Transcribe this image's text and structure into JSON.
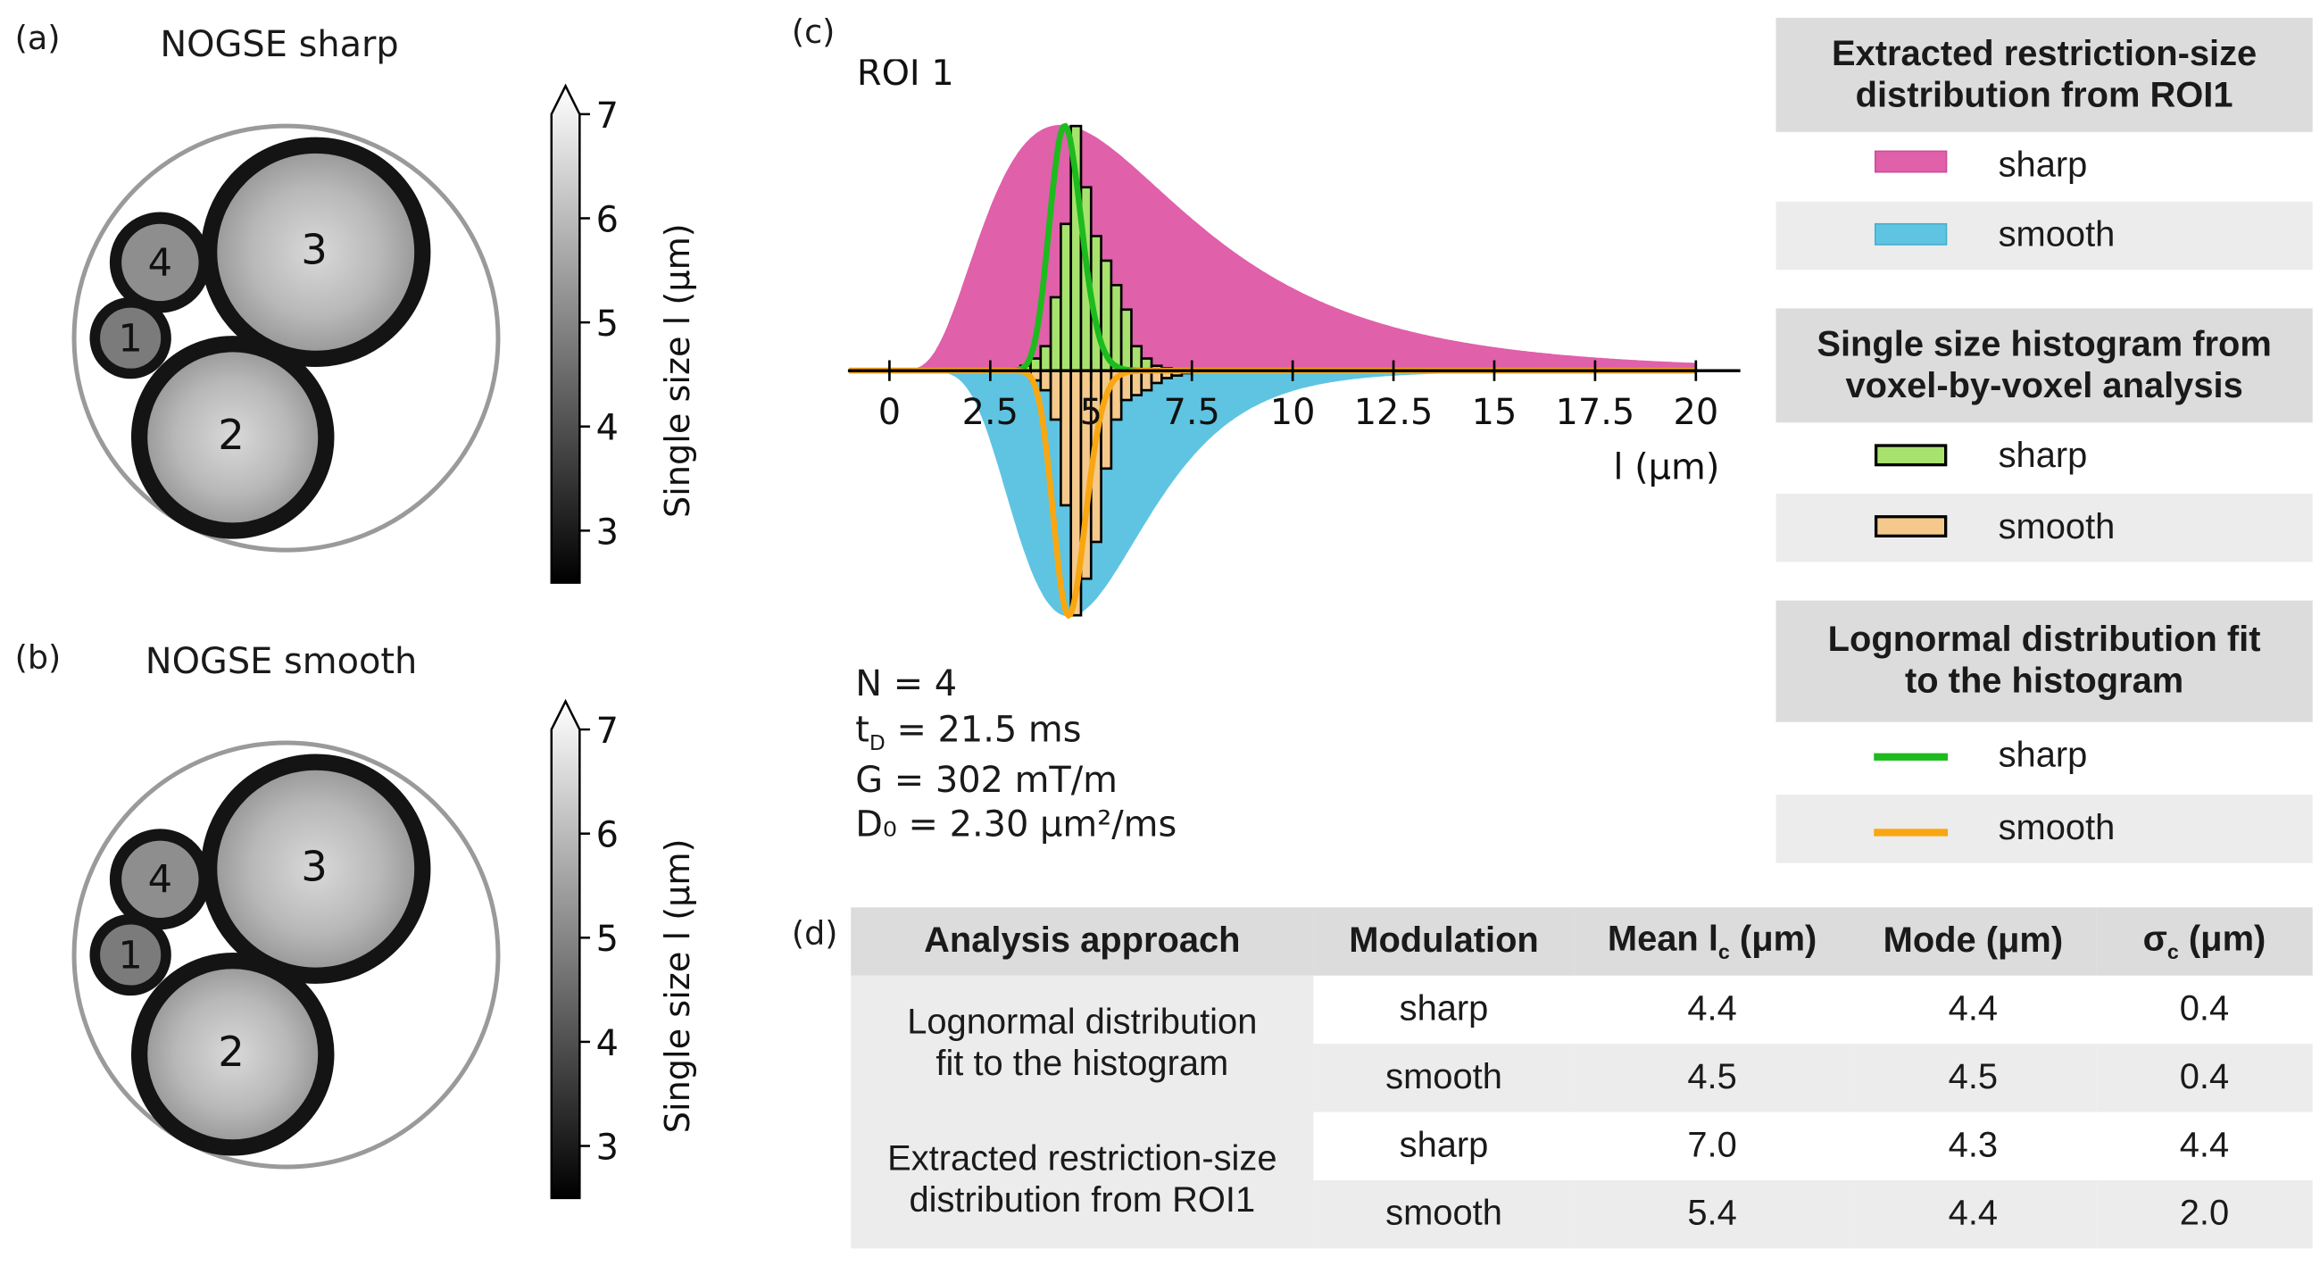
{
  "panels": {
    "a": {
      "label": "(a)",
      "title": "NOGSE sharp"
    },
    "b": {
      "label": "(b)",
      "title": "NOGSE smooth"
    },
    "c": {
      "label": "(c)",
      "title": "ROI 1"
    },
    "d": {
      "label": "(d)"
    }
  },
  "region_labels": [
    "1",
    "2",
    "3",
    "4"
  ],
  "colorbar": {
    "label": "Single size l (μm)",
    "ticks": [
      "3",
      "4",
      "5",
      "6",
      "7"
    ],
    "range": [
      2.5,
      7
    ],
    "extend": "max"
  },
  "colors": {
    "sharp_fill": "#e060aa",
    "smooth_fill": "#5ec4e2",
    "sharp_hist": "#a8e26e",
    "smooth_hist": "#f5c98c",
    "sharp_fit": "#1dbb1d",
    "smooth_fit": "#f8a712",
    "header_bg": "#dcdcdc",
    "row_bg": "#ececec"
  },
  "params": {
    "n": "N = 4",
    "td_prefix": "t",
    "td_sub": "D",
    "td_value": " = 21.5 ms",
    "g": "G = 302 mT/m",
    "d0": "D₀ = 2.30 μm²/ms"
  },
  "chart_data": {
    "type": "area",
    "title": "ROI 1",
    "xlabel": "l (μm)",
    "ylabel": "",
    "xlim": [
      -1,
      20.5
    ],
    "xticks": [
      0,
      2.5,
      5,
      7.5,
      10,
      12.5,
      15,
      17.5,
      20
    ],
    "xtick_labels": [
      "0",
      "2.5",
      "5",
      "7.5",
      "10",
      "12.5",
      "15",
      "17.5",
      "20"
    ],
    "series": [
      {
        "name": "Extracted restriction-size distribution sharp",
        "kind": "lognormal-area",
        "direction": "up",
        "mean": 7.0,
        "mode": 4.3,
        "sigma": 4.4,
        "peak": 1.0
      },
      {
        "name": "Extracted restriction-size distribution smooth",
        "kind": "lognormal-area",
        "direction": "down",
        "mean": 5.4,
        "mode": 4.4,
        "sigma": 2.0,
        "peak": 1.0
      },
      {
        "name": "Lognormal fit sharp",
        "kind": "lognormal-line",
        "direction": "up",
        "mean": 4.4,
        "mode": 4.4,
        "sigma": 0.4,
        "peak": 1.0
      },
      {
        "name": "Lognormal fit smooth",
        "kind": "lognormal-line",
        "direction": "down",
        "mean": 4.5,
        "mode": 4.5,
        "sigma": 0.4,
        "peak": 1.0
      }
    ],
    "histograms": {
      "bin_width": 0.25,
      "sharp": {
        "start": 3.25,
        "values": [
          0.02,
          0.05,
          0.1,
          0.3,
          0.6,
          1.0,
          0.75,
          0.55,
          0.45,
          0.35,
          0.25,
          0.1,
          0.05,
          0.02,
          0.01
        ]
      },
      "smooth": {
        "start": 3.5,
        "values": [
          0.04,
          0.08,
          0.2,
          0.55,
          1.0,
          0.85,
          0.7,
          0.4,
          0.2,
          0.12,
          0.1,
          0.08,
          0.05,
          0.03,
          0.02,
          0.01
        ]
      }
    }
  },
  "legend": {
    "extracted_title": "Extracted restriction-size distribution from ROI1",
    "hist_title": "Single size histogram from voxel-by-voxel analysis",
    "fit_title": "Lognormal distribution fit to the histogram",
    "sharp": "sharp",
    "smooth": "smooth"
  },
  "table": {
    "headers": [
      "Analysis approach",
      "Modulation",
      "Mean l",
      "c",
      " (μm)",
      "Mode (μm)",
      "σ",
      "c",
      " (μm)"
    ],
    "groups": [
      {
        "approach": "Lognormal distribution fit to the histogram",
        "rows": [
          {
            "modulation": "sharp",
            "mean": "4.4",
            "mode": "4.4",
            "sigma": "0.4"
          },
          {
            "modulation": "smooth",
            "mean": "4.5",
            "mode": "4.5",
            "sigma": "0.4"
          }
        ]
      },
      {
        "approach": "Extracted restriction-size distribution from ROI1",
        "rows": [
          {
            "modulation": "sharp",
            "mean": "7.0",
            "mode": "4.3",
            "sigma": "4.4"
          },
          {
            "modulation": "smooth",
            "mean": "5.4",
            "mode": "4.4",
            "sigma": "2.0"
          }
        ]
      }
    ]
  }
}
